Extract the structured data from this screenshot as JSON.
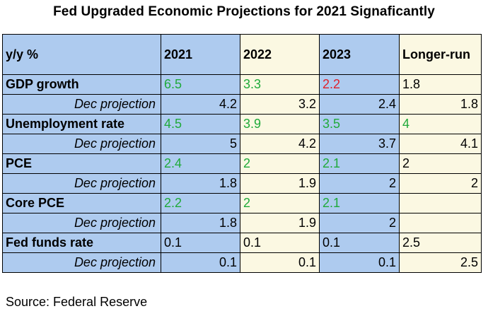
{
  "title": "Fed Upgraded Economic Projections for 2021 Signaficantly",
  "table": {
    "headers": [
      "y/y  %",
      "2021",
      "2022",
      "2023",
      "Longer-run"
    ],
    "rows": [
      {
        "label": "GDP growth",
        "dec": false,
        "values": [
          "6.5",
          "3.3",
          "2.2",
          "1.8"
        ],
        "colors": [
          "#1faa3a",
          "#1faa3a",
          "#e0202a",
          "#000000"
        ]
      },
      {
        "label": "Dec projection",
        "dec": true,
        "values": [
          "4.2",
          "3.2",
          "2.4",
          "1.8"
        ]
      },
      {
        "label": "Unemployment rate",
        "dec": false,
        "values": [
          "4.5",
          "3.9",
          "3.5",
          "4"
        ],
        "colors": [
          "#1faa3a",
          "#1faa3a",
          "#1faa3a",
          "#1faa3a"
        ]
      },
      {
        "label": "Dec projection",
        "dec": true,
        "values": [
          "5",
          "4.2",
          "3.7",
          "4.1"
        ]
      },
      {
        "label": "PCE",
        "dec": false,
        "values": [
          "2.4",
          "2",
          "2.1",
          "2"
        ],
        "colors": [
          "#1faa3a",
          "#1faa3a",
          "#1faa3a",
          "#000000"
        ]
      },
      {
        "label": "Dec projection",
        "dec": true,
        "values": [
          "1.8",
          "1.9",
          "2",
          "2"
        ]
      },
      {
        "label": "Core PCE",
        "dec": false,
        "values": [
          "2.2",
          "2",
          "2.1",
          ""
        ],
        "colors": [
          "#1faa3a",
          "#1faa3a",
          "#1faa3a",
          "#000000"
        ]
      },
      {
        "label": "Dec projection",
        "dec": true,
        "values": [
          "1.8",
          "1.9",
          "2",
          ""
        ]
      },
      {
        "label": "Fed funds rate",
        "dec": false,
        "values": [
          "0.1",
          "0.1",
          "0.1",
          "2.5"
        ],
        "colors": [
          "#000000",
          "#000000",
          "#000000",
          "#000000"
        ]
      },
      {
        "label": "Dec projection",
        "dec": true,
        "values": [
          "0.1",
          "0.1",
          "0.1",
          "2.5"
        ]
      }
    ]
  },
  "source": "Source: Federal Reserve"
}
